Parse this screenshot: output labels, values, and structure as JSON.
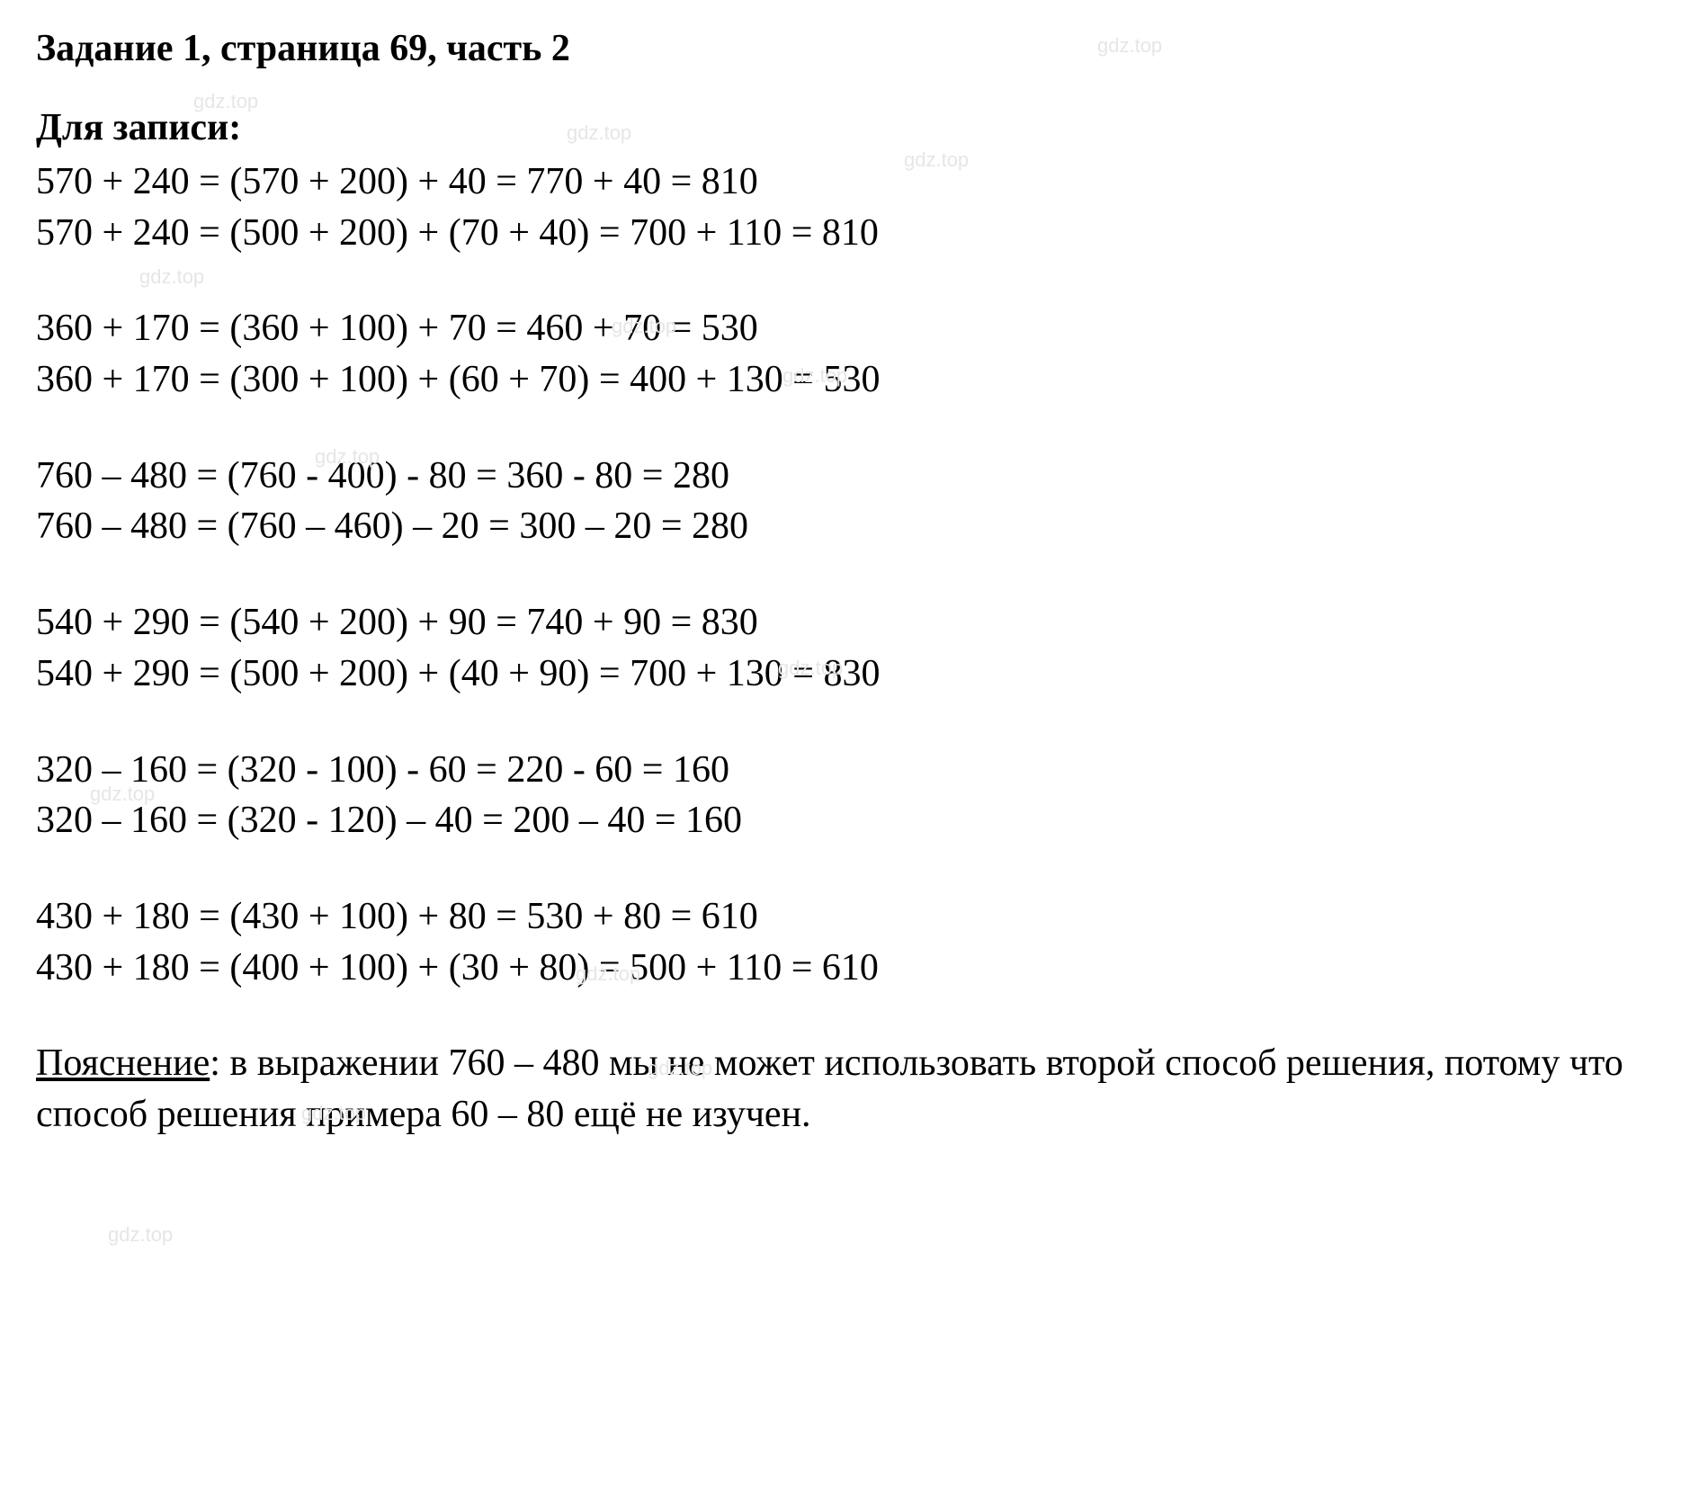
{
  "title": "Задание 1, страница 69, часть 2",
  "section_label": "Для записи:",
  "watermark_text": "gdz.top",
  "groups": [
    {
      "lines": [
        "570 + 240 = (570 + 200) + 40 = 770 + 40 = 810",
        "570 + 240 = (500 + 200) + (70 + 40) = 700 + 110 = 810"
      ]
    },
    {
      "lines": [
        "360 + 170 = (360 + 100) + 70 = 460 + 70 = 530",
        "360 + 170 = (300 + 100) + (60 + 70) = 400 + 130 = 530"
      ]
    },
    {
      "lines": [
        "760 – 480 = (760 - 400) - 80 = 360 - 80 = 280",
        "760 – 480 = (760 – 460) – 20 = 300 – 20 = 280"
      ]
    },
    {
      "lines": [
        "540 + 290 = (540 + 200) + 90 = 740 + 90 = 830",
        "540 + 290 = (500 + 200) + (40 + 90) = 700 + 130 = 830"
      ]
    },
    {
      "lines": [
        "320 – 160 = (320 - 100) - 60 = 220 - 60 = 160",
        "320 – 160 = (320 - 120) – 40 = 200 – 40 = 160"
      ]
    },
    {
      "lines": [
        "430 + 180 = (430 + 100) + 80 = 530 + 80 = 610",
        "430 + 180 = (400 + 100) + (30 + 80) = 500 + 110 = 610"
      ]
    }
  ],
  "explanation": {
    "label": "Пояснение",
    "text": ": в выражении 760 – 480 мы не может использовать второй способ решения, потому что способ решения примера 60 – 80 ещё не изучен."
  }
}
